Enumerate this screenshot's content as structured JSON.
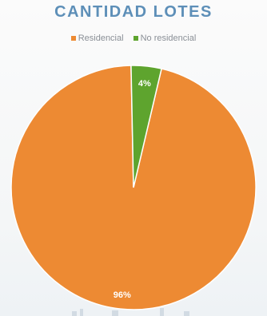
{
  "chart_data": {
    "type": "pie",
    "title": "CANTIDAD LOTES",
    "legend_position": "top",
    "slices": [
      {
        "name": "Residencial",
        "value": 96,
        "label": "96%",
        "color": "#ed8a33"
      },
      {
        "name": "No residencial",
        "value": 4,
        "label": "4%",
        "color": "#5ea42e"
      }
    ]
  },
  "colors": {
    "title": "#5d8fb8",
    "slice_border": "#ffffff"
  }
}
